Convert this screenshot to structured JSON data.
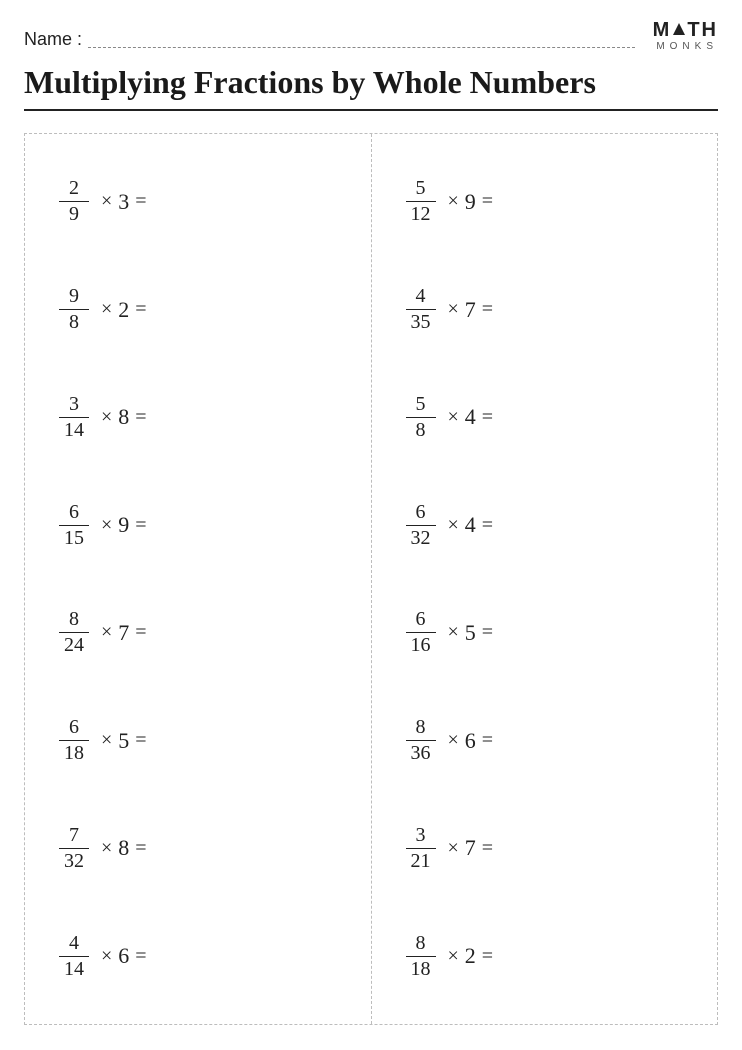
{
  "header": {
    "name_label": "Name :",
    "logo_top_left": "M",
    "logo_top_right": "TH",
    "logo_sub": "MONKS"
  },
  "title": "Multiplying Fractions by Whole Numbers",
  "style": {
    "page_bg": "#ffffff",
    "text_color": "#222222",
    "border_dash_color": "#bdbdbd",
    "title_underline_color": "#222222",
    "title_fontsize": 32,
    "problem_fontsize": 22,
    "fraction_fontsize": 20,
    "name_dash_color": "#888888"
  },
  "symbols": {
    "times": "×",
    "equals": "="
  },
  "problems": {
    "left": [
      {
        "num": "2",
        "den": "9",
        "whole": "3"
      },
      {
        "num": "9",
        "den": "8",
        "whole": "2"
      },
      {
        "num": "3",
        "den": "14",
        "whole": "8"
      },
      {
        "num": "6",
        "den": "15",
        "whole": "9"
      },
      {
        "num": "8",
        "den": "24",
        "whole": "7"
      },
      {
        "num": "6",
        "den": "18",
        "whole": "5"
      },
      {
        "num": "7",
        "den": "32",
        "whole": "8"
      },
      {
        "num": "4",
        "den": "14",
        "whole": "6"
      }
    ],
    "right": [
      {
        "num": "5",
        "den": "12",
        "whole": "9"
      },
      {
        "num": "4",
        "den": "35",
        "whole": "7"
      },
      {
        "num": "5",
        "den": "8",
        "whole": "4"
      },
      {
        "num": "6",
        "den": "32",
        "whole": "4"
      },
      {
        "num": "6",
        "den": "16",
        "whole": "5"
      },
      {
        "num": "8",
        "den": "36",
        "whole": "6"
      },
      {
        "num": "3",
        "den": "21",
        "whole": "7"
      },
      {
        "num": "8",
        "den": "18",
        "whole": "2"
      }
    ]
  }
}
